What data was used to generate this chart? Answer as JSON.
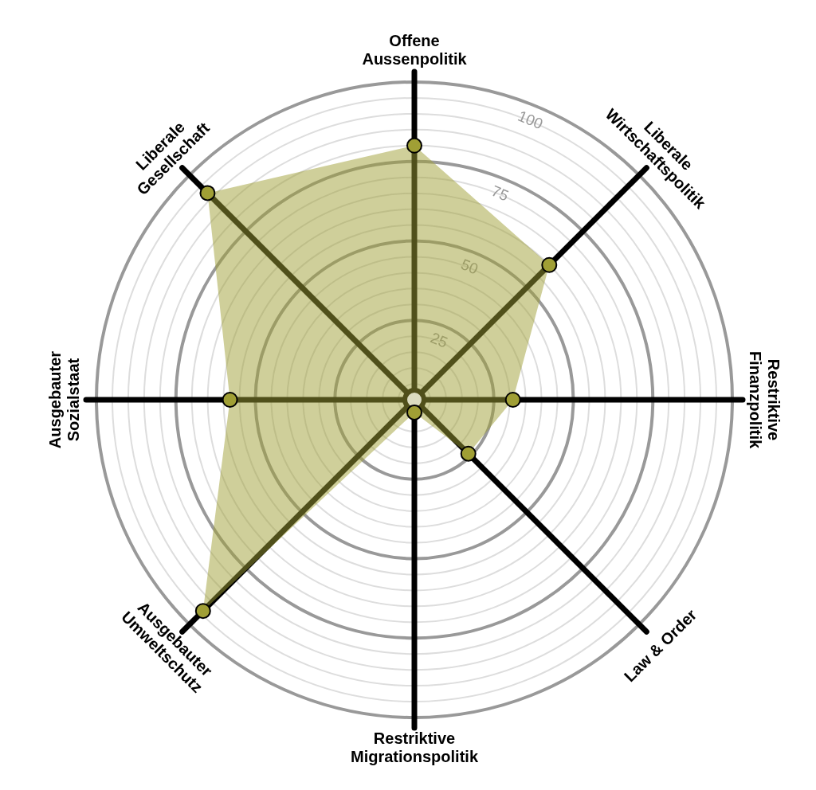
{
  "chart_data": {
    "type": "radar",
    "categories": [
      "Offene\nAussenpolitik",
      "Liberale\nWirtschaftspolitik",
      "Restriktive\nFinanzpolitik",
      "Law & Order",
      "Restriktive\nMigrationspolitik",
      "Ausgebauter\nUmweltschutz",
      "Ausgebauter\nSozialstaat",
      "Liberale\nGesellschaft"
    ],
    "series": [
      {
        "color": "#a09f35",
        "values": [
          80,
          60,
          31,
          24,
          4,
          94,
          58,
          92
        ]
      }
    ],
    "ylim": [
      0,
      100
    ],
    "yticks": [
      25,
      50,
      75,
      100
    ],
    "grid": true,
    "marker": "circle"
  }
}
